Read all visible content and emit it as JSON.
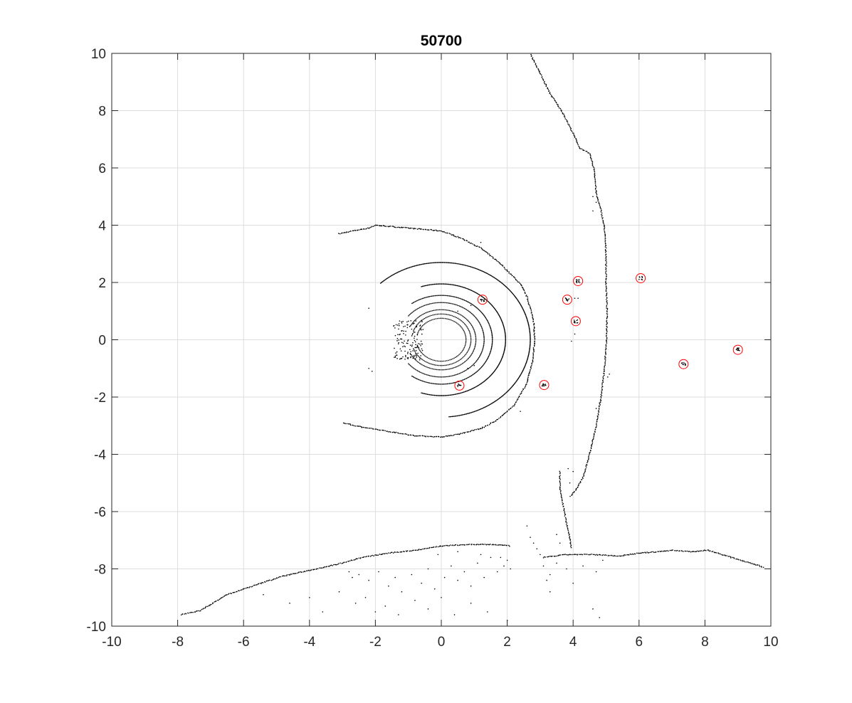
{
  "chart_data": {
    "type": "scatter",
    "title": "50700",
    "xlabel": "",
    "ylabel": "",
    "xlim": [
      -10,
      10
    ],
    "ylim": [
      -10,
      10
    ],
    "xticks": [
      -10,
      -8,
      -6,
      -4,
      -2,
      0,
      2,
      4,
      6,
      8,
      10
    ],
    "yticks": [
      -10,
      -8,
      -6,
      -4,
      -2,
      0,
      2,
      4,
      6,
      8,
      10
    ],
    "xtick_labels": [
      "-10",
      "-8",
      "-6",
      "-4",
      "-2",
      "0",
      "2",
      "4",
      "6",
      "8",
      "10"
    ],
    "ytick_labels": [
      "-10",
      "-8",
      "-6",
      "-4",
      "-2",
      "0",
      "2",
      "4",
      "6",
      "8",
      "10"
    ],
    "grid": true,
    "colors": {
      "points": "#000000",
      "markers": "#ff0000",
      "grid": "#dedede",
      "axes": "#262626"
    },
    "rings": [
      {
        "r": 0.75,
        "from_deg": -165,
        "to_deg": 165
      },
      {
        "r": 0.9,
        "from_deg": -160,
        "to_deg": 160
      },
      {
        "r": 1.05,
        "from_deg": -150,
        "to_deg": 150
      },
      {
        "r": 1.3,
        "from_deg": -140,
        "to_deg": 140
      },
      {
        "r": 1.55,
        "from_deg": -125,
        "to_deg": 125
      },
      {
        "r": 1.95,
        "from_deg": -108,
        "to_deg": 108
      },
      {
        "r": 2.7,
        "from_deg": -85,
        "to_deg": 133
      }
    ],
    "polylines": [
      {
        "name": "outer-scan-arc",
        "points": [
          [
            -3.1,
            3.7
          ],
          [
            -2.7,
            3.8
          ],
          [
            -2.2,
            3.9
          ],
          [
            -2.0,
            4.0
          ],
          [
            -1.5,
            3.95
          ],
          [
            -1.0,
            3.9
          ],
          [
            -0.5,
            3.85
          ],
          [
            0.0,
            3.8
          ],
          [
            0.6,
            3.55
          ],
          [
            1.2,
            3.2
          ],
          [
            1.8,
            2.65
          ],
          [
            2.4,
            1.95
          ],
          [
            2.6,
            1.5
          ],
          [
            2.8,
            0.7
          ],
          [
            2.83,
            0.0
          ],
          [
            2.78,
            -0.7
          ],
          [
            2.6,
            -1.5
          ],
          [
            2.2,
            -2.3
          ],
          [
            1.7,
            -2.8
          ],
          [
            1.2,
            -3.1
          ],
          [
            0.5,
            -3.3
          ],
          [
            0.0,
            -3.4
          ],
          [
            -0.8,
            -3.35
          ],
          [
            -1.6,
            -3.2
          ],
          [
            -2.4,
            -3.05
          ],
          [
            -3.0,
            -2.9
          ]
        ]
      },
      {
        "name": "right-wall",
        "points": [
          [
            2.7,
            10.0
          ],
          [
            3.0,
            9.3
          ],
          [
            3.3,
            8.6
          ],
          [
            3.7,
            7.9
          ],
          [
            4.0,
            7.2
          ],
          [
            4.2,
            6.7
          ],
          [
            4.5,
            6.5
          ],
          [
            4.65,
            5.9
          ],
          [
            4.7,
            5.1
          ],
          [
            4.85,
            4.5
          ],
          [
            4.95,
            3.9
          ],
          [
            5.0,
            3.0
          ],
          [
            5.0,
            2.0
          ],
          [
            5.03,
            1.0
          ],
          [
            5.02,
            0.0
          ],
          [
            4.95,
            -1.0
          ],
          [
            4.85,
            -2.0
          ],
          [
            4.7,
            -3.0
          ],
          [
            4.5,
            -4.0
          ],
          [
            4.3,
            -4.8
          ],
          [
            4.05,
            -5.3
          ],
          [
            3.9,
            -5.5
          ]
        ]
      },
      {
        "name": "lower-left-wall",
        "points": [
          [
            -7.9,
            -9.6
          ],
          [
            -7.3,
            -9.45
          ],
          [
            -6.5,
            -8.9
          ],
          [
            -5.6,
            -8.55
          ],
          [
            -4.8,
            -8.25
          ],
          [
            -4.0,
            -8.05
          ],
          [
            -3.2,
            -7.85
          ],
          [
            -2.4,
            -7.6
          ],
          [
            -1.6,
            -7.45
          ],
          [
            -0.8,
            -7.35
          ],
          [
            0.0,
            -7.2
          ],
          [
            0.8,
            -7.15
          ],
          [
            1.6,
            -7.15
          ],
          [
            2.1,
            -7.2
          ]
        ]
      },
      {
        "name": "lower-right-wall",
        "points": [
          [
            3.1,
            -7.6
          ],
          [
            3.8,
            -7.5
          ],
          [
            4.6,
            -7.5
          ],
          [
            5.4,
            -7.55
          ],
          [
            6.0,
            -7.45
          ],
          [
            6.6,
            -7.4
          ],
          [
            7.0,
            -7.35
          ],
          [
            7.6,
            -7.4
          ],
          [
            8.1,
            -7.35
          ],
          [
            8.8,
            -7.6
          ],
          [
            9.4,
            -7.8
          ],
          [
            9.8,
            -7.95
          ]
        ]
      },
      {
        "name": "middle-post",
        "points": [
          [
            3.6,
            -4.6
          ],
          [
            3.6,
            -5.2
          ],
          [
            3.7,
            -5.8
          ],
          [
            3.8,
            -6.4
          ],
          [
            3.9,
            -6.9
          ],
          [
            3.95,
            -7.3
          ]
        ]
      }
    ],
    "scattered_points": [
      [
        -2.8,
        -8.1
      ],
      [
        -2.7,
        -8.3
      ],
      [
        -2.5,
        -8.2
      ],
      [
        -2.2,
        -8.4
      ],
      [
        -1.9,
        -8.1
      ],
      [
        -1.6,
        -8.6
      ],
      [
        -1.4,
        -8.3
      ],
      [
        -1.2,
        -8.8
      ],
      [
        -0.9,
        -8.2
      ],
      [
        -0.6,
        -8.5
      ],
      [
        -0.4,
        -8.0
      ],
      [
        -0.2,
        -8.7
      ],
      [
        0.1,
        -8.3
      ],
      [
        0.3,
        -7.9
      ],
      [
        0.5,
        -8.4
      ],
      [
        0.7,
        -8.1
      ],
      [
        0.9,
        -8.6
      ],
      [
        1.1,
        -7.8
      ],
      [
        1.3,
        -8.3
      ],
      [
        1.5,
        -7.6
      ],
      [
        1.7,
        -8.1
      ],
      [
        1.9,
        -7.9
      ],
      [
        2.1,
        -8.0
      ],
      [
        -3.1,
        -8.8
      ],
      [
        -2.6,
        -9.2
      ],
      [
        -2.3,
        -9.0
      ],
      [
        -2.0,
        -9.5
      ],
      [
        -1.7,
        -9.3
      ],
      [
        -1.3,
        -9.6
      ],
      [
        -0.8,
        -9.1
      ],
      [
        -0.4,
        -9.4
      ],
      [
        0.0,
        -9.0
      ],
      [
        0.4,
        -9.6
      ],
      [
        0.9,
        -9.2
      ],
      [
        1.4,
        -9.5
      ],
      [
        2.0,
        -9.8
      ],
      [
        -4.0,
        -9.0
      ],
      [
        -3.6,
        -9.5
      ],
      [
        -5.4,
        -8.9
      ],
      [
        -4.6,
        -9.2
      ],
      [
        -0.1,
        -7.5
      ],
      [
        0.5,
        -7.4
      ],
      [
        1.2,
        -7.5
      ],
      [
        1.8,
        -7.6
      ],
      [
        2.0,
        -7.7
      ],
      [
        3.1,
        -7.9
      ],
      [
        3.3,
        -8.2
      ],
      [
        3.5,
        -7.8
      ],
      [
        3.8,
        -8.0
      ],
      [
        4.0,
        -8.5
      ],
      [
        4.3,
        -7.9
      ],
      [
        4.7,
        -8.1
      ],
      [
        3.2,
        -8.4
      ],
      [
        4.9,
        -7.7
      ],
      [
        3.3,
        -8.8
      ],
      [
        4.6,
        -9.4
      ],
      [
        4.8,
        -9.7
      ],
      [
        2.6,
        -6.5
      ],
      [
        2.7,
        -6.9
      ],
      [
        2.8,
        -7.1
      ],
      [
        2.9,
        -7.3
      ],
      [
        3.0,
        -7.5
      ],
      [
        4.1,
        -5.2
      ],
      [
        4.0,
        -4.6
      ],
      [
        3.85,
        -4.5
      ],
      [
        3.9,
        -5.0
      ],
      [
        3.5,
        -6.8
      ],
      [
        3.6,
        -7.1
      ],
      [
        4.7,
        4.8
      ],
      [
        4.6,
        4.5
      ],
      [
        4.6,
        5.0
      ],
      [
        5.1,
        -1.2
      ],
      [
        5.05,
        -1.3
      ],
      [
        4.7,
        -2.4
      ],
      [
        4.8,
        -2.2
      ],
      [
        4.05,
        1.45
      ],
      [
        3.95,
        -0.05
      ],
      [
        4.05,
        0.2
      ],
      [
        4.1,
        2.1
      ],
      [
        4.15,
        1.45
      ],
      [
        -2.2,
        1.1
      ],
      [
        -2.2,
        -1.0
      ],
      [
        -2.1,
        -1.1
      ],
      [
        0.5,
        1.0
      ],
      [
        0.9,
        1.2
      ],
      [
        1.0,
        -0.9
      ],
      [
        0.8,
        -1.0
      ],
      [
        2.0,
        2.4
      ],
      [
        1.2,
        3.4
      ],
      [
        2.4,
        -2.5
      ],
      [
        1.2,
        -3.1
      ],
      [
        1.25,
        -3.05
      ]
    ],
    "dense_cluster": {
      "center": [
        -1.0,
        0.0
      ],
      "spread_x": 0.45,
      "spread_y": 0.7,
      "count": 140
    },
    "marker_size": 0.8,
    "circled_objects": [
      {
        "x": 1.25,
        "y": 1.4
      },
      {
        "x": 0.55,
        "y": -1.6
      },
      {
        "x": 3.12,
        "y": -1.58
      },
      {
        "x": 3.82,
        "y": 1.4
      },
      {
        "x": 4.15,
        "y": 2.05
      },
      {
        "x": 4.08,
        "y": 0.65
      },
      {
        "x": 6.05,
        "y": 2.15
      },
      {
        "x": 7.35,
        "y": -0.85
      },
      {
        "x": 9.0,
        "y": -0.35
      }
    ]
  }
}
